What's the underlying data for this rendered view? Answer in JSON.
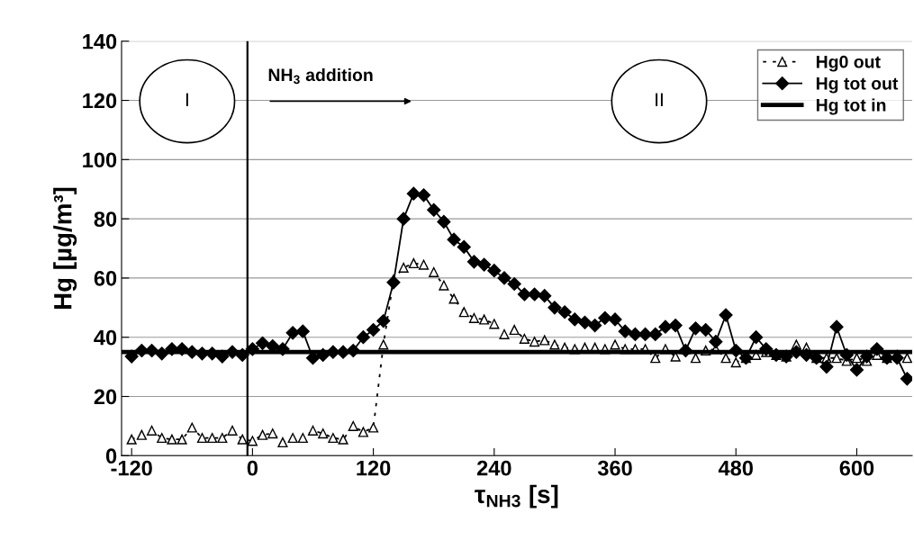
{
  "chart_data": {
    "type": "line",
    "xlabel": "τ$_{NH3}$ [s]",
    "ylabel": "Hg [µg/m³]",
    "x": [
      -120,
      -110,
      -100,
      -90,
      -80,
      -70,
      -60,
      -50,
      -40,
      -30,
      -20,
      -10,
      0,
      10,
      20,
      30,
      40,
      50,
      60,
      70,
      80,
      90,
      100,
      110,
      120,
      130,
      140,
      150,
      160,
      170,
      180,
      190,
      200,
      210,
      220,
      230,
      240,
      250,
      260,
      270,
      280,
      290,
      300,
      310,
      320,
      330,
      340,
      350,
      360,
      370,
      380,
      390,
      400,
      410,
      420,
      430,
      440,
      450,
      460,
      470,
      480,
      490,
      500,
      510,
      520,
      530,
      540,
      550,
      560,
      570,
      580,
      590,
      600,
      610,
      620,
      630,
      640,
      650
    ],
    "series": [
      {
        "name": "Hg0 out",
        "color": "#000000",
        "marker": "triangle",
        "line_style": "dashed",
        "values": [
          5.5,
          7,
          8.5,
          6,
          5.5,
          5.5,
          9.5,
          6,
          6,
          6,
          8.5,
          5.5,
          5,
          7,
          7.5,
          4.5,
          6,
          6,
          8.5,
          7.5,
          6,
          5.5,
          10,
          8,
          9.5,
          37.5,
          59.5,
          63.5,
          65,
          64.5,
          62,
          57.5,
          53,
          48.5,
          46.5,
          46,
          44.5,
          41,
          42.5,
          39.5,
          38.5,
          39,
          37.5,
          36.5,
          36,
          36.5,
          36.5,
          36,
          37.5,
          36,
          36,
          36,
          33,
          36,
          33.5,
          36,
          33,
          35.5,
          36,
          33,
          31.5,
          33,
          34,
          35,
          34,
          33.5,
          37.5,
          36.5,
          33,
          33,
          33,
          32,
          33,
          32,
          34,
          33,
          34,
          33
        ]
      },
      {
        "name": "Hg tot out",
        "color": "#000000",
        "marker": "diamond",
        "line_style": "solid",
        "values": [
          33.5,
          35.5,
          35.5,
          34.5,
          36,
          36,
          35,
          34.5,
          34.5,
          33.5,
          35,
          34,
          36,
          38,
          37,
          36,
          41.5,
          42,
          33,
          34,
          35,
          35,
          35.5,
          40,
          42.5,
          45.5,
          58.5,
          80,
          88.5,
          88,
          83,
          79,
          73,
          70.5,
          65.5,
          64.5,
          62.5,
          60,
          58,
          54.5,
          54.5,
          54,
          50,
          48.5,
          46,
          45,
          44,
          46.5,
          46,
          42,
          41,
          41,
          41,
          43.5,
          44,
          35.5,
          43,
          42.5,
          38.5,
          47.5,
          35.5,
          33,
          40,
          36,
          34,
          33.5,
          35,
          34,
          33,
          30,
          43.5,
          34,
          29,
          33.5,
          36,
          33,
          33,
          26
        ]
      },
      {
        "name": "Hg tot in",
        "color": "#000000",
        "marker": "none",
        "line_style": "solid",
        "x": [
          -130,
          655
        ],
        "values": [
          35,
          35
        ]
      }
    ],
    "xlim": [
      -130,
      655
    ],
    "ylim": [
      0,
      140
    ],
    "xticks": [
      -120,
      0,
      120,
      240,
      360,
      480,
      600
    ],
    "yticks": [
      0,
      20,
      40,
      60,
      80,
      100,
      120,
      140
    ],
    "grid": "y",
    "legend": "top right",
    "ref_lines": [
      {
        "axis": "x",
        "value": -5,
        "label": null,
        "color": "#000000"
      }
    ],
    "annotations": [
      "NH$_{3}$ addition",
      "I",
      "II"
    ]
  }
}
